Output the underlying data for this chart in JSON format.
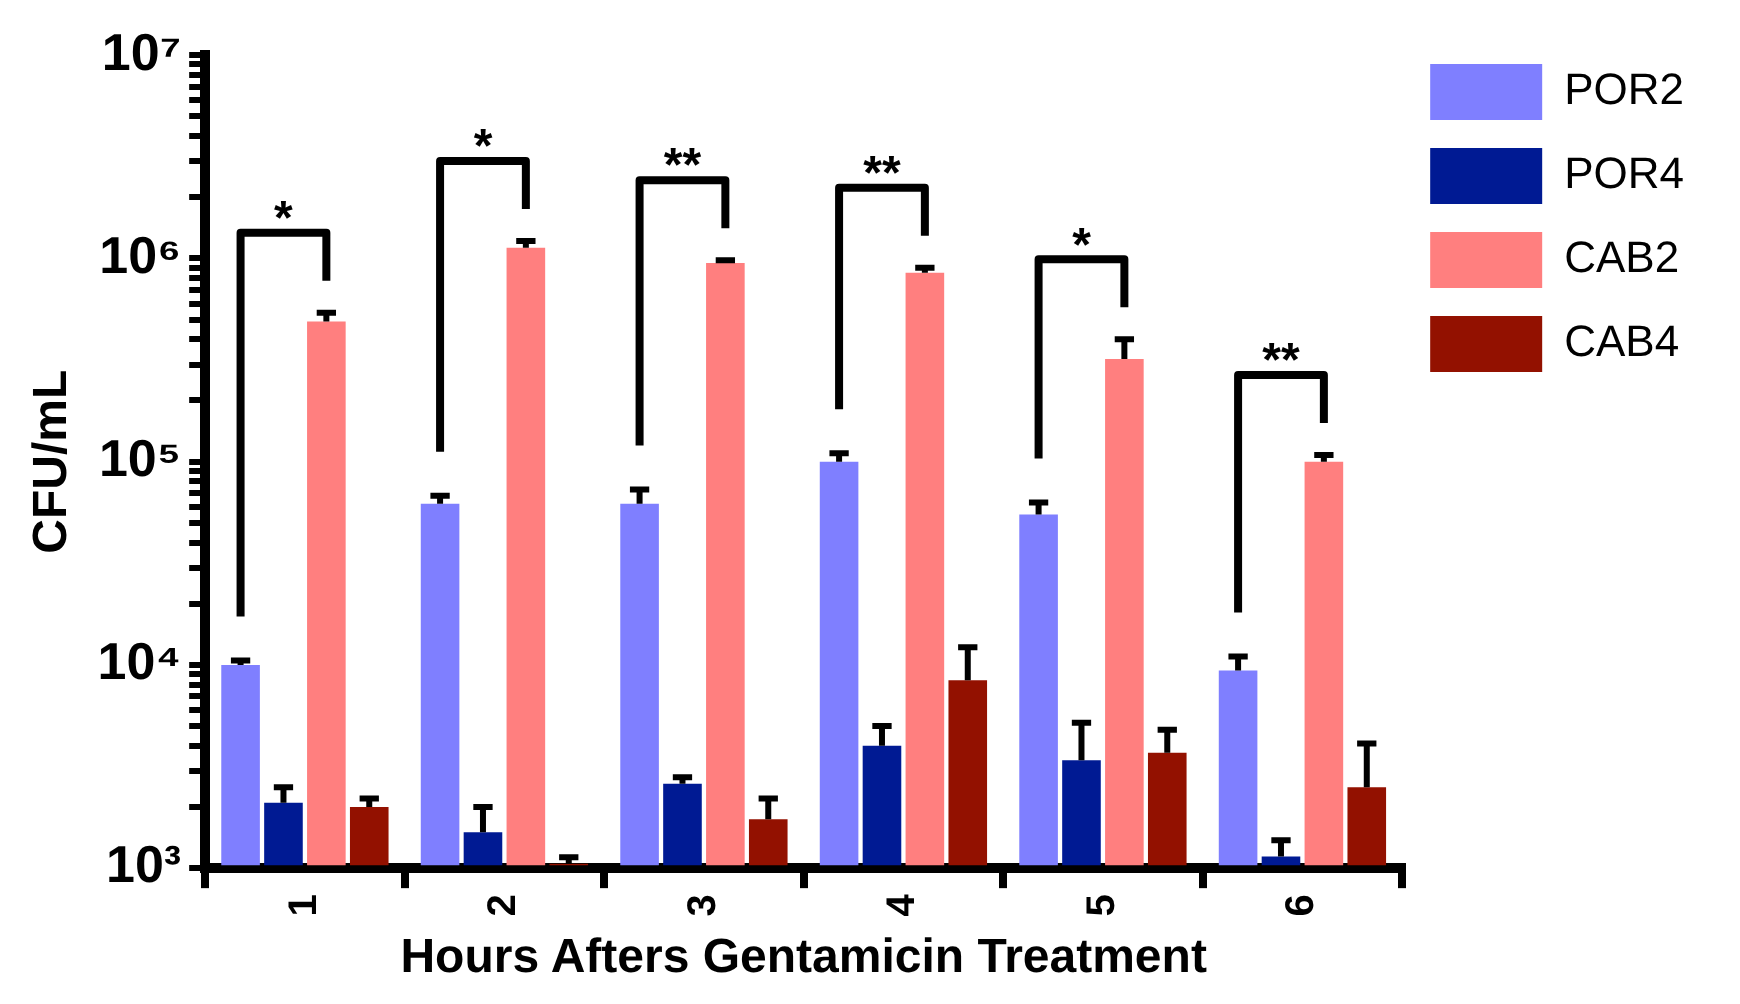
{
  "chart_data": {
    "type": "bar",
    "xlabel": "Hours Afters Gentamicin Treatment",
    "ylabel": "CFU/mL",
    "categories": [
      "1",
      "2",
      "3",
      "4",
      "5",
      "6"
    ],
    "series": [
      {
        "name": "POR2",
        "color": "#7f7fff",
        "values": [
          10000,
          62000,
          62000,
          100000,
          55000,
          9400
        ],
        "errors": [
          [
            10000,
            10500
          ],
          [
            62000,
            68000
          ],
          [
            62000,
            73000
          ],
          [
            100000,
            110000
          ],
          [
            55000,
            63000
          ],
          [
            9400,
            11000
          ]
        ]
      },
      {
        "name": "POR4",
        "color": "#001a93",
        "values": [
          2100,
          1500,
          2600,
          4000,
          3400,
          1140
        ],
        "errors": [
          [
            2100,
            2500
          ],
          [
            1500,
            2000
          ],
          [
            2600,
            2800
          ],
          [
            4000,
            5000
          ],
          [
            3400,
            5200
          ],
          [
            1140,
            1370
          ]
        ]
      },
      {
        "name": "CAB2",
        "color": "#ff7f7f",
        "values": [
          490000,
          1130000,
          950000,
          850000,
          320000,
          100000
        ],
        "errors": [
          [
            490000,
            540000
          ],
          [
            1130000,
            1220000
          ],
          [
            950000,
            980000
          ],
          [
            850000,
            900000
          ],
          [
            320000,
            400000
          ],
          [
            100000,
            108000
          ]
        ]
      },
      {
        "name": "CAB4",
        "color": "#931100",
        "values": [
          2000,
          1050,
          1740,
          8400,
          3700,
          2500
        ],
        "errors": [
          [
            2000,
            2200
          ],
          [
            1050,
            1130
          ],
          [
            1740,
            2200
          ],
          [
            8400,
            12200
          ],
          [
            3700,
            4800
          ],
          [
            2500,
            4100
          ]
        ]
      }
    ],
    "log": "y",
    "ylim": [
      1000,
      10000000
    ],
    "yticks": [
      {
        "value": 1000,
        "label": "10³"
      },
      {
        "value": 2000,
        "label": null
      },
      {
        "value": 3000,
        "label": null
      },
      {
        "value": 4000,
        "label": null
      },
      {
        "value": 5000,
        "label": null
      },
      {
        "value": 6000,
        "label": null
      },
      {
        "value": 7000,
        "label": null
      },
      {
        "value": 8000,
        "label": null
      },
      {
        "value": 9000,
        "label": null
      },
      {
        "value": 10000,
        "label": "10⁴"
      },
      {
        "value": 20000,
        "label": null
      },
      {
        "value": 30000,
        "label": null
      },
      {
        "value": 40000,
        "label": null
      },
      {
        "value": 50000,
        "label": null
      },
      {
        "value": 60000,
        "label": null
      },
      {
        "value": 70000,
        "label": null
      },
      {
        "value": 80000,
        "label": null
      },
      {
        "value": 90000,
        "label": null
      },
      {
        "value": 100000,
        "label": "10⁵"
      },
      {
        "value": 200000,
        "label": null
      },
      {
        "value": 300000,
        "label": null
      },
      {
        "value": 400000,
        "label": null
      },
      {
        "value": 500000,
        "label": null
      },
      {
        "value": 600000,
        "label": null
      },
      {
        "value": 700000,
        "label": null
      },
      {
        "value": 800000,
        "label": null
      },
      {
        "value": 900000,
        "label": null
      },
      {
        "value": 1000000,
        "label": "10⁶"
      },
      {
        "value": 2000000,
        "label": null
      },
      {
        "value": 3000000,
        "label": null
      },
      {
        "value": 4000000,
        "label": null
      },
      {
        "value": 5000000,
        "label": null
      },
      {
        "value": 6000000,
        "label": null
      },
      {
        "value": 7000000,
        "label": null
      },
      {
        "value": 8000000,
        "label": null
      },
      {
        "value": 9000000,
        "label": null
      },
      {
        "value": 10000000,
        "label": "10⁷"
      }
    ],
    "grid": false,
    "legend": "top right",
    "annotations": [
      "*",
      "*",
      "**",
      "**",
      "*",
      "**"
    ]
  }
}
